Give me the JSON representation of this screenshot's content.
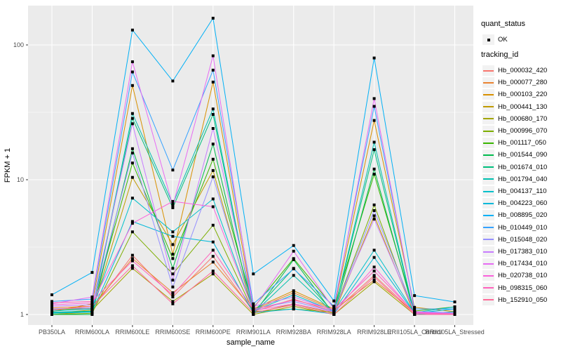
{
  "figure": {
    "panel_bg": "#EBEBEB",
    "grid_color": "#FFFFFF",
    "axis_text_color": "#4D4D4D",
    "tick_color": "#333333",
    "point_color": "#000000"
  },
  "axes": {
    "x_label": "sample_name",
    "y_label": "FPKM + 1",
    "y_ticks": [
      {
        "label": "100",
        "value": 100
      },
      {
        "label": "10",
        "value": 10
      },
      {
        "label": "1",
        "value": 1
      }
    ]
  },
  "legend": {
    "quant_status_title": "quant_status",
    "quant_status_items": [
      {
        "label": "OK"
      }
    ],
    "tracking_id_title": "tracking_id"
  },
  "chart_data": {
    "type": "line",
    "title": "",
    "xlabel": "sample_name",
    "ylabel": "FPKM + 1",
    "y_scale": "log10",
    "ylim": [
      0.84,
      196
    ],
    "grid": true,
    "legend_position": "right",
    "categories": [
      "PB350LA",
      "RRIM600LA",
      "RRIM600LE",
      "RRIM600SE",
      "RRIM600PE",
      "RRIM901LA",
      "RRIM928BA",
      "RRIM928LA",
      "RRIM928LE",
      "RRII105LA_Control",
      "RRII105LA_Stressed"
    ],
    "series": [
      {
        "name": "Hb_000032_420",
        "color": "#F8766D",
        "values": [
          1.1,
          1.1,
          2.75,
          1.35,
          2.7,
          1.05,
          1.3,
          1.05,
          1.95,
          1.02,
          1.0
        ]
      },
      {
        "name": "Hb_000077_280",
        "color": "#EA8331",
        "values": [
          1.12,
          1.15,
          2.6,
          1.45,
          2.45,
          1.08,
          1.45,
          1.08,
          1.8,
          1.04,
          1.02
        ]
      },
      {
        "name": "Hb_000103_220",
        "color": "#D89000",
        "values": [
          1.05,
          1.2,
          50.0,
          2.8,
          53.0,
          1.1,
          1.5,
          1.1,
          27.5,
          1.13,
          1.05
        ]
      },
      {
        "name": "Hb_000441_130",
        "color": "#C09B00",
        "values": [
          1.0,
          1.05,
          10.4,
          3.3,
          11.7,
          1.02,
          1.2,
          1.02,
          5.4,
          1.0,
          1.0
        ]
      },
      {
        "name": "Hb_000680_170",
        "color": "#A3A500",
        "values": [
          1.02,
          1.08,
          2.2,
          1.25,
          2.0,
          1.0,
          1.15,
          1.0,
          1.75,
          1.0,
          1.0
        ]
      },
      {
        "name": "Hb_000996_070",
        "color": "#7CAE00",
        "values": [
          1.0,
          1.02,
          4.1,
          2.0,
          4.6,
          1.05,
          1.1,
          1.04,
          6.5,
          1.0,
          1.0
        ]
      },
      {
        "name": "Hb_001117_050",
        "color": "#39B600",
        "values": [
          1.08,
          1.12,
          13.3,
          2.6,
          14.2,
          1.12,
          2.6,
          1.12,
          11.0,
          1.06,
          1.14
        ]
      },
      {
        "name": "Hb_001544_090",
        "color": "#00BB4E",
        "values": [
          1.0,
          1.0,
          17.0,
          2.2,
          18.4,
          1.0,
          2.55,
          1.0,
          12.0,
          1.0,
          1.0
        ]
      },
      {
        "name": "Hb_001674_010",
        "color": "#00BF7D",
        "values": [
          1.04,
          1.06,
          28.5,
          6.2,
          30.5,
          1.04,
          2.2,
          1.03,
          16.7,
          1.0,
          1.0
        ]
      },
      {
        "name": "Hb_001794_040",
        "color": "#00C0AF",
        "values": [
          1.02,
          1.04,
          31.0,
          6.6,
          33.5,
          1.02,
          1.95,
          1.02,
          19.0,
          1.0,
          1.05
        ]
      },
      {
        "name": "Hb_004137_110",
        "color": "#00C1CB",
        "values": [
          1.06,
          1.1,
          7.3,
          4.1,
          7.2,
          1.06,
          1.4,
          1.06,
          3.0,
          1.03,
          1.14
        ]
      },
      {
        "name": "Hb_004223_060",
        "color": "#00B8D9",
        "values": [
          1.03,
          1.05,
          4.9,
          3.8,
          3.45,
          1.03,
          1.1,
          1.01,
          2.65,
          1.02,
          1.1
        ]
      },
      {
        "name": "Hb_008895_020",
        "color": "#00B0F6",
        "values": [
          1.4,
          2.05,
          129.0,
          54.0,
          158.0,
          2.0,
          3.25,
          1.26,
          80.0,
          1.38,
          1.24
        ]
      },
      {
        "name": "Hb_010449_010",
        "color": "#35A2FF",
        "values": [
          1.25,
          1.3,
          63.0,
          11.8,
          65.0,
          1.2,
          2.18,
          1.15,
          35.0,
          1.1,
          1.1
        ]
      },
      {
        "name": "Hb_015048_020",
        "color": "#9590FF",
        "values": [
          1.1,
          1.12,
          15.8,
          1.6,
          10.5,
          1.1,
          1.25,
          1.05,
          5.9,
          1.05,
          1.03
        ]
      },
      {
        "name": "Hb_017383_010",
        "color": "#C77CFF",
        "values": [
          1.15,
          1.18,
          26.0,
          1.8,
          24.0,
          1.15,
          1.35,
          1.07,
          5.1,
          1.04,
          1.02
        ]
      },
      {
        "name": "Hb_017434_010",
        "color": "#E76BF3",
        "values": [
          1.2,
          1.35,
          75.0,
          6.4,
          83.0,
          1.1,
          2.95,
          1.1,
          40.0,
          1.05,
          1.0
        ]
      },
      {
        "name": "Hb_020738_010",
        "color": "#FA62DB",
        "values": [
          1.18,
          1.22,
          4.75,
          6.9,
          6.3,
          1.07,
          1.2,
          1.04,
          2.25,
          1.02,
          1.0
        ]
      },
      {
        "name": "Hb_098315_060",
        "color": "#FF62BC",
        "values": [
          1.22,
          1.25,
          2.5,
          1.4,
          3.0,
          1.09,
          1.28,
          1.09,
          2.1,
          1.03,
          1.01
        ]
      },
      {
        "name": "Hb_152910_050",
        "color": "#FF6A98",
        "values": [
          1.08,
          1.15,
          2.3,
          1.2,
          2.1,
          1.03,
          1.18,
          1.0,
          1.9,
          1.0,
          1.0
        ]
      }
    ]
  }
}
